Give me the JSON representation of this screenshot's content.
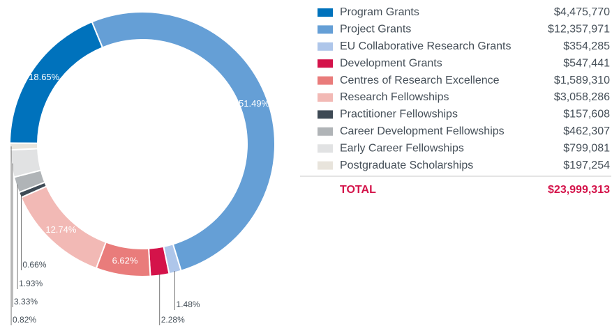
{
  "chart_data": {
    "type": "pie",
    "categories": [
      "Program Grants",
      "Project Grants",
      "EU Collaborative Research Grants",
      "Development Grants",
      "Centres of Research Excellence",
      "Research Fellowships",
      "Practitioner Fellowships",
      "Career Development Fellowships",
      "Early Career Fellowships",
      "Postgraduate Scholarships"
    ],
    "values": [
      18.65,
      51.49,
      1.48,
      2.28,
      6.62,
      12.74,
      0.66,
      1.93,
      3.33,
      0.82
    ],
    "value_labels": [
      "18.65%",
      "51.49%",
      "1.48%",
      "2.28%",
      "6.62%",
      "12.74%",
      "0.66%",
      "1.93%",
      "3.33%",
      "0.82%"
    ],
    "amounts": [
      "$4,475,770",
      "$12,357,971",
      "$354,285",
      "$547,441",
      "$1,589,310",
      "$3,058,286",
      "$157,608",
      "$462,307",
      "$799,081",
      "$197,254"
    ],
    "colors": [
      "#0072bc",
      "#659fd6",
      "#aec6ea",
      "#d4134a",
      "#e97c7b",
      "#f2b9b5",
      "#3e4a55",
      "#b0b4b7",
      "#e1e2e3",
      "#e8e4dc"
    ],
    "total_label": "TOTAL",
    "total": "$23,999,313"
  }
}
